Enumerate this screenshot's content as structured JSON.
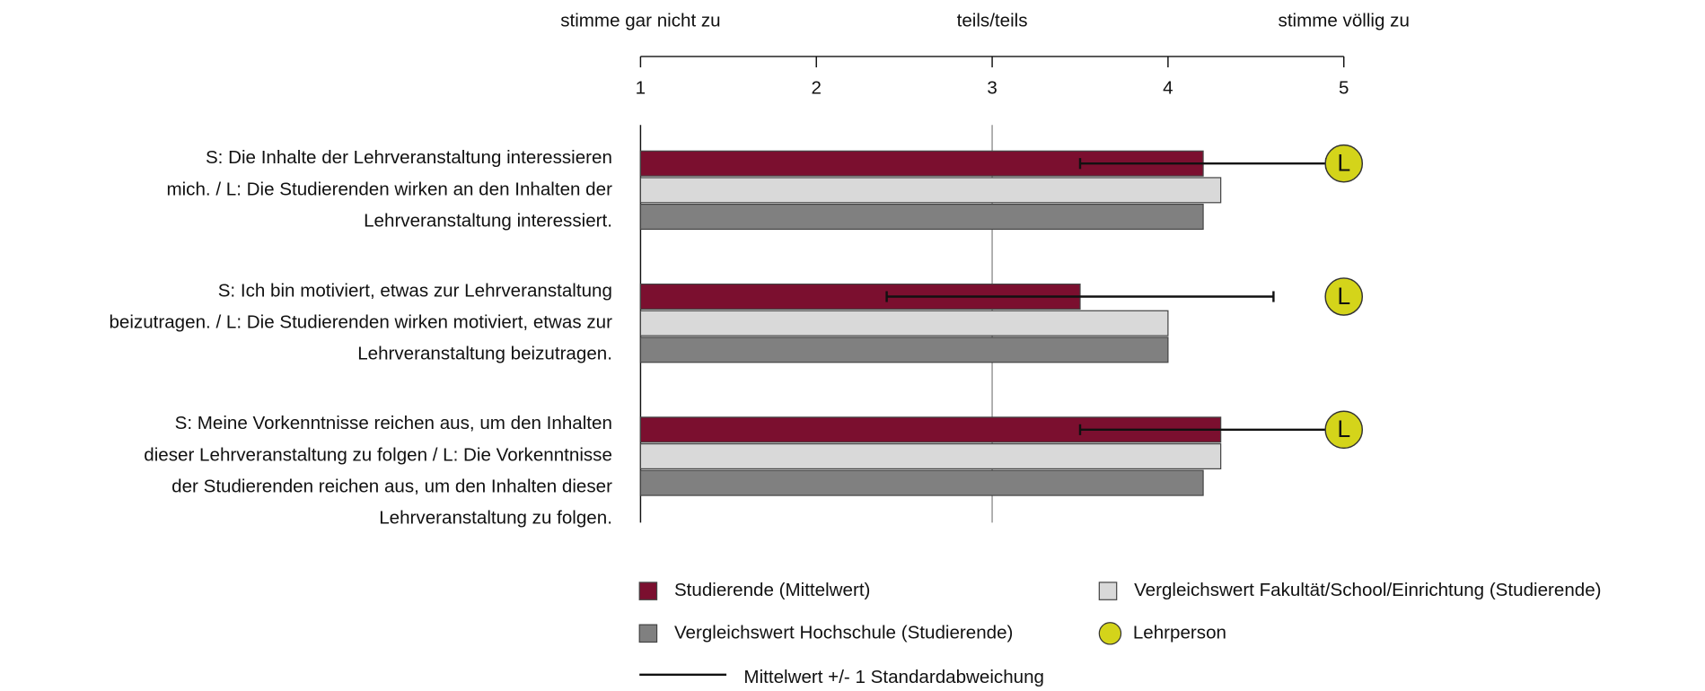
{
  "chart_data": {
    "type": "bar",
    "orientation": "horizontal",
    "categories": [
      [
        "S: Die Inhalte der Lehrveranstaltung interessieren",
        "mich. / L: Die Studierenden wirken an den Inhalten der",
        "Lehrveranstaltung interessiert."
      ],
      [
        "S: Ich bin motiviert, etwas zur Lehrveranstaltung",
        "beizutragen. / L: Die Studierenden wirken motiviert, etwas zur",
        "Lehrveranstaltung beizutragen."
      ],
      [
        "S: Meine Vorkenntnisse reichen aus, um den Inhalten",
        "dieser Lehrveranstaltung zu folgen / L: Die Vorkenntnisse",
        "der Studierenden reichen aus, um den Inhalten dieser",
        "Lehrveranstaltung zu folgen."
      ]
    ],
    "series": [
      {
        "name": "Studierende (Mittelwert)",
        "color": "#7b0f2f",
        "values": [
          4.2,
          3.5,
          4.3
        ],
        "errors": [
          0.7,
          1.1,
          0.8
        ]
      },
      {
        "name": "Vergleichswert Fakultät/School/Einrichtung (Studierende)",
        "color": "#d9d9d9",
        "values": [
          4.3,
          4.0,
          4.3
        ]
      },
      {
        "name": "Vergleichswert Hochschule (Studierende)",
        "color": "#808080",
        "values": [
          4.2,
          4.0,
          4.2
        ]
      },
      {
        "name": "Lehrperson",
        "color": "#d4d41a",
        "values": [
          5,
          5,
          5
        ],
        "marker_label": "L"
      }
    ],
    "error_label": "Mittelwert +/- 1 Standardabweichung",
    "xlim": [
      1,
      5
    ],
    "xticks": [
      1,
      2,
      3,
      4,
      5
    ],
    "scale_labels": [
      {
        "value": 1,
        "label": "stimme gar nicht zu"
      },
      {
        "value": 3,
        "label": "teils/teils"
      },
      {
        "value": 5,
        "label": "stimme völlig zu"
      }
    ],
    "reference_line": 3
  }
}
